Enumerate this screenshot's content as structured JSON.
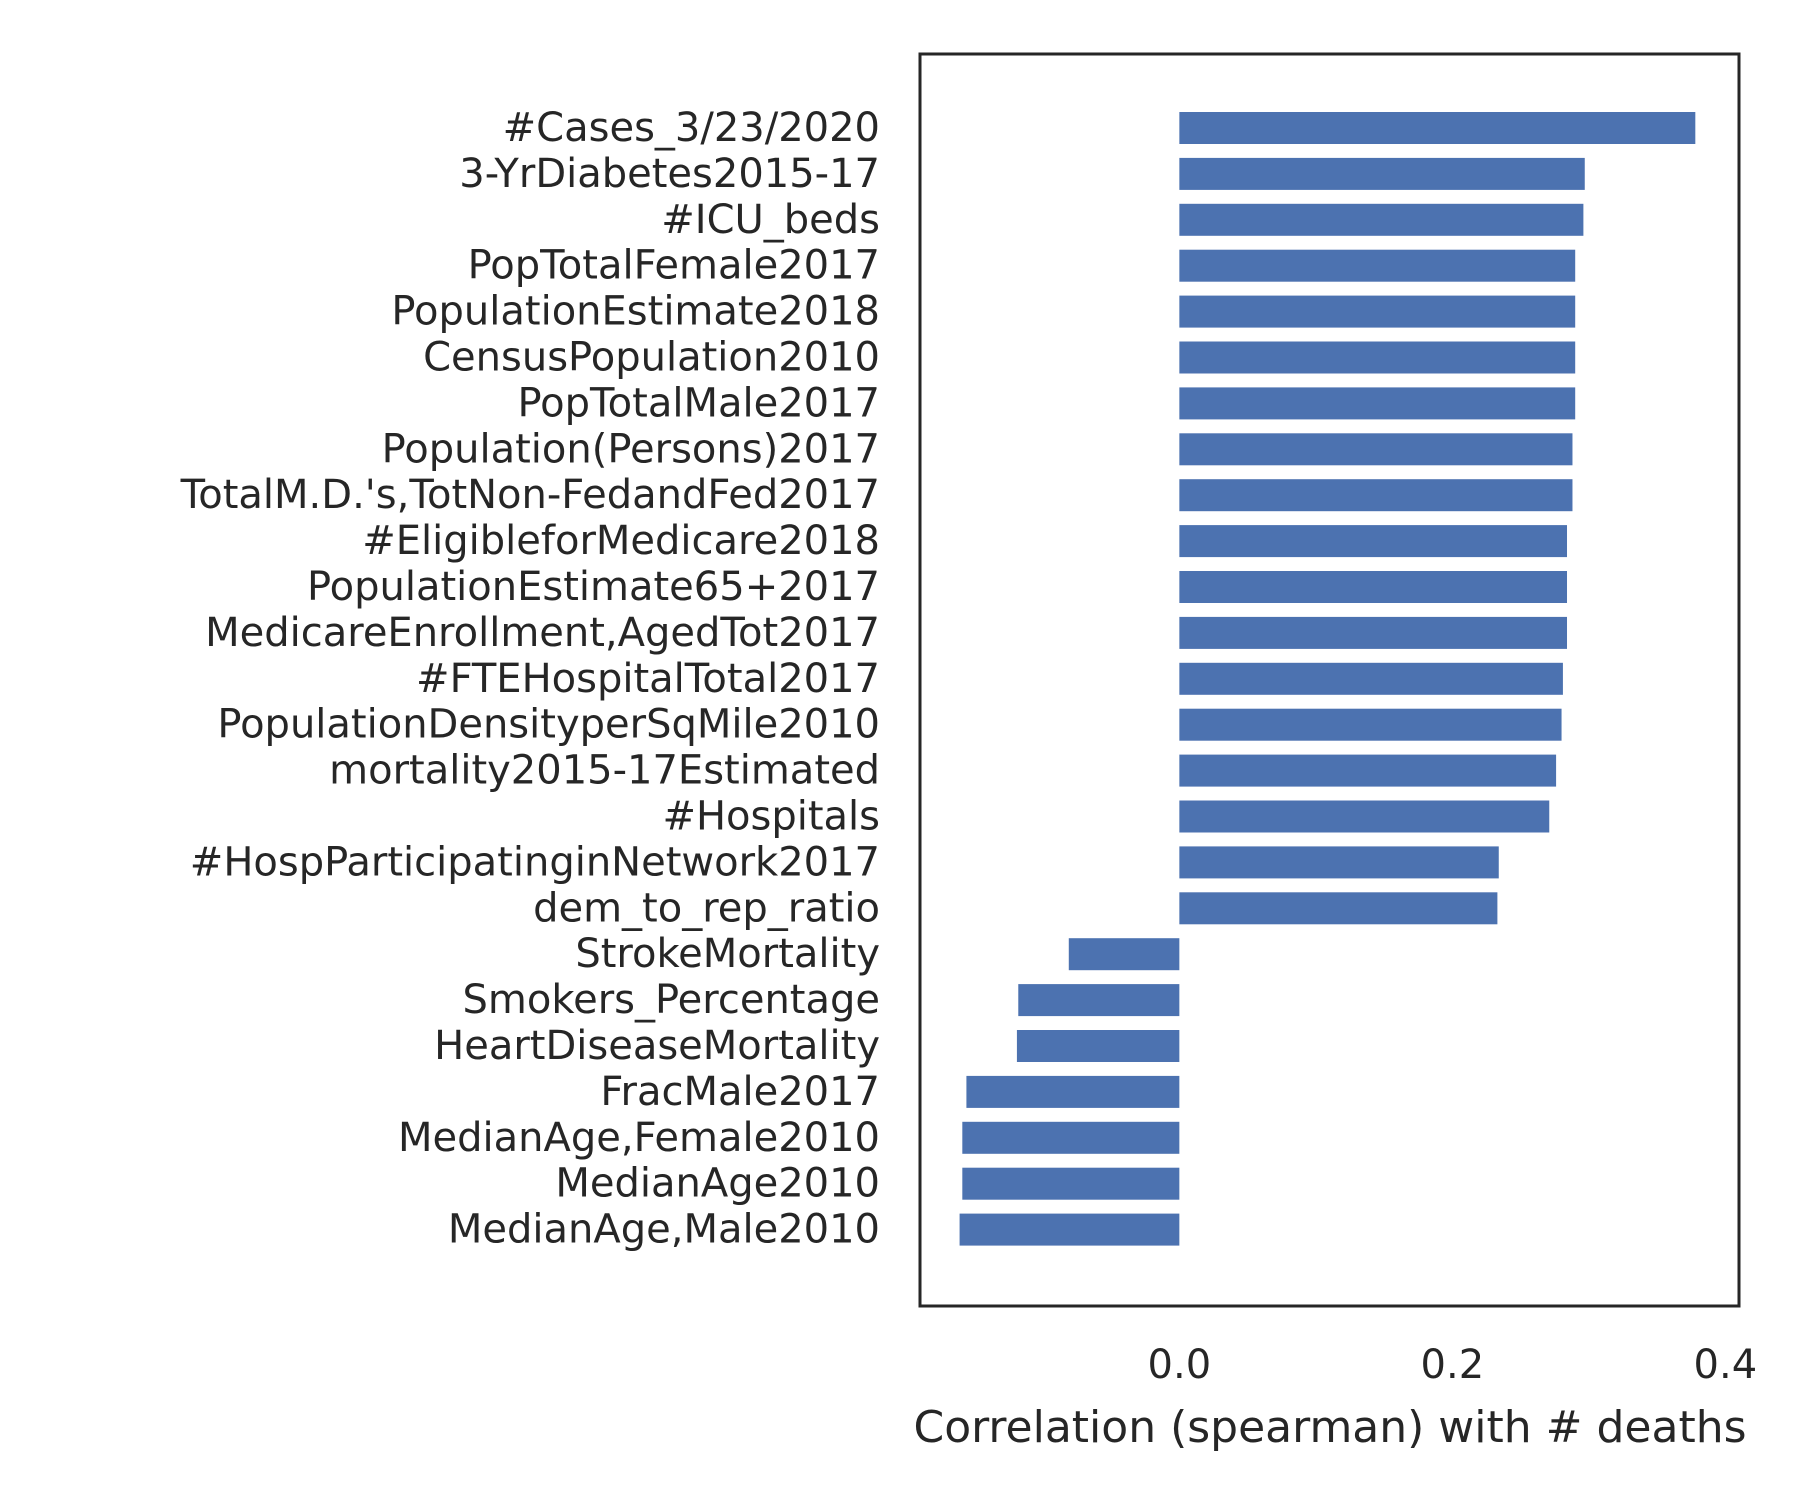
{
  "chart_data": {
    "type": "bar",
    "orientation": "horizontal",
    "title": "",
    "xlabel": "Correlation (spearman) with # deaths",
    "ylabel": "",
    "xlim": [
      -0.19,
      0.41
    ],
    "xticks": [
      0.0,
      0.2,
      0.4
    ],
    "xtick_labels": [
      "0.0",
      "0.2",
      "0.4"
    ],
    "grid": false,
    "bar_color": "#4c72b0",
    "categories": [
      "#Cases_3/23/2020",
      "3-YrDiabetes2015-17",
      "#ICU_beds",
      "PopTotalFemale2017",
      "PopulationEstimate2018",
      "CensusPopulation2010",
      "PopTotalMale2017",
      "Population(Persons)2017",
      "TotalM.D.'s,TotNon-FedandFed2017",
      "#EligibleforMedicare2018",
      "PopulationEstimate65+2017",
      "MedicareEnrollment,AgedTot2017",
      "#FTEHospitalTotal2017",
      "PopulationDensityperSqMile2010",
      "mortality2015-17Estimated",
      "#Hospitals",
      "#HospParticipatinginNetwork2017",
      "dem_to_rep_ratio",
      "StrokeMortality",
      "Smokers_Percentage",
      "HeartDiseaseMortality",
      "FracMale2017",
      "MedianAge,Female2010",
      "MedianAge2010",
      "MedianAge,Male2010"
    ],
    "values": [
      0.378,
      0.297,
      0.296,
      0.29,
      0.29,
      0.29,
      0.29,
      0.288,
      0.288,
      0.284,
      0.284,
      0.284,
      0.281,
      0.28,
      0.276,
      0.271,
      0.234,
      0.233,
      -0.081,
      -0.118,
      -0.119,
      -0.156,
      -0.159,
      -0.159,
      -0.161
    ]
  }
}
